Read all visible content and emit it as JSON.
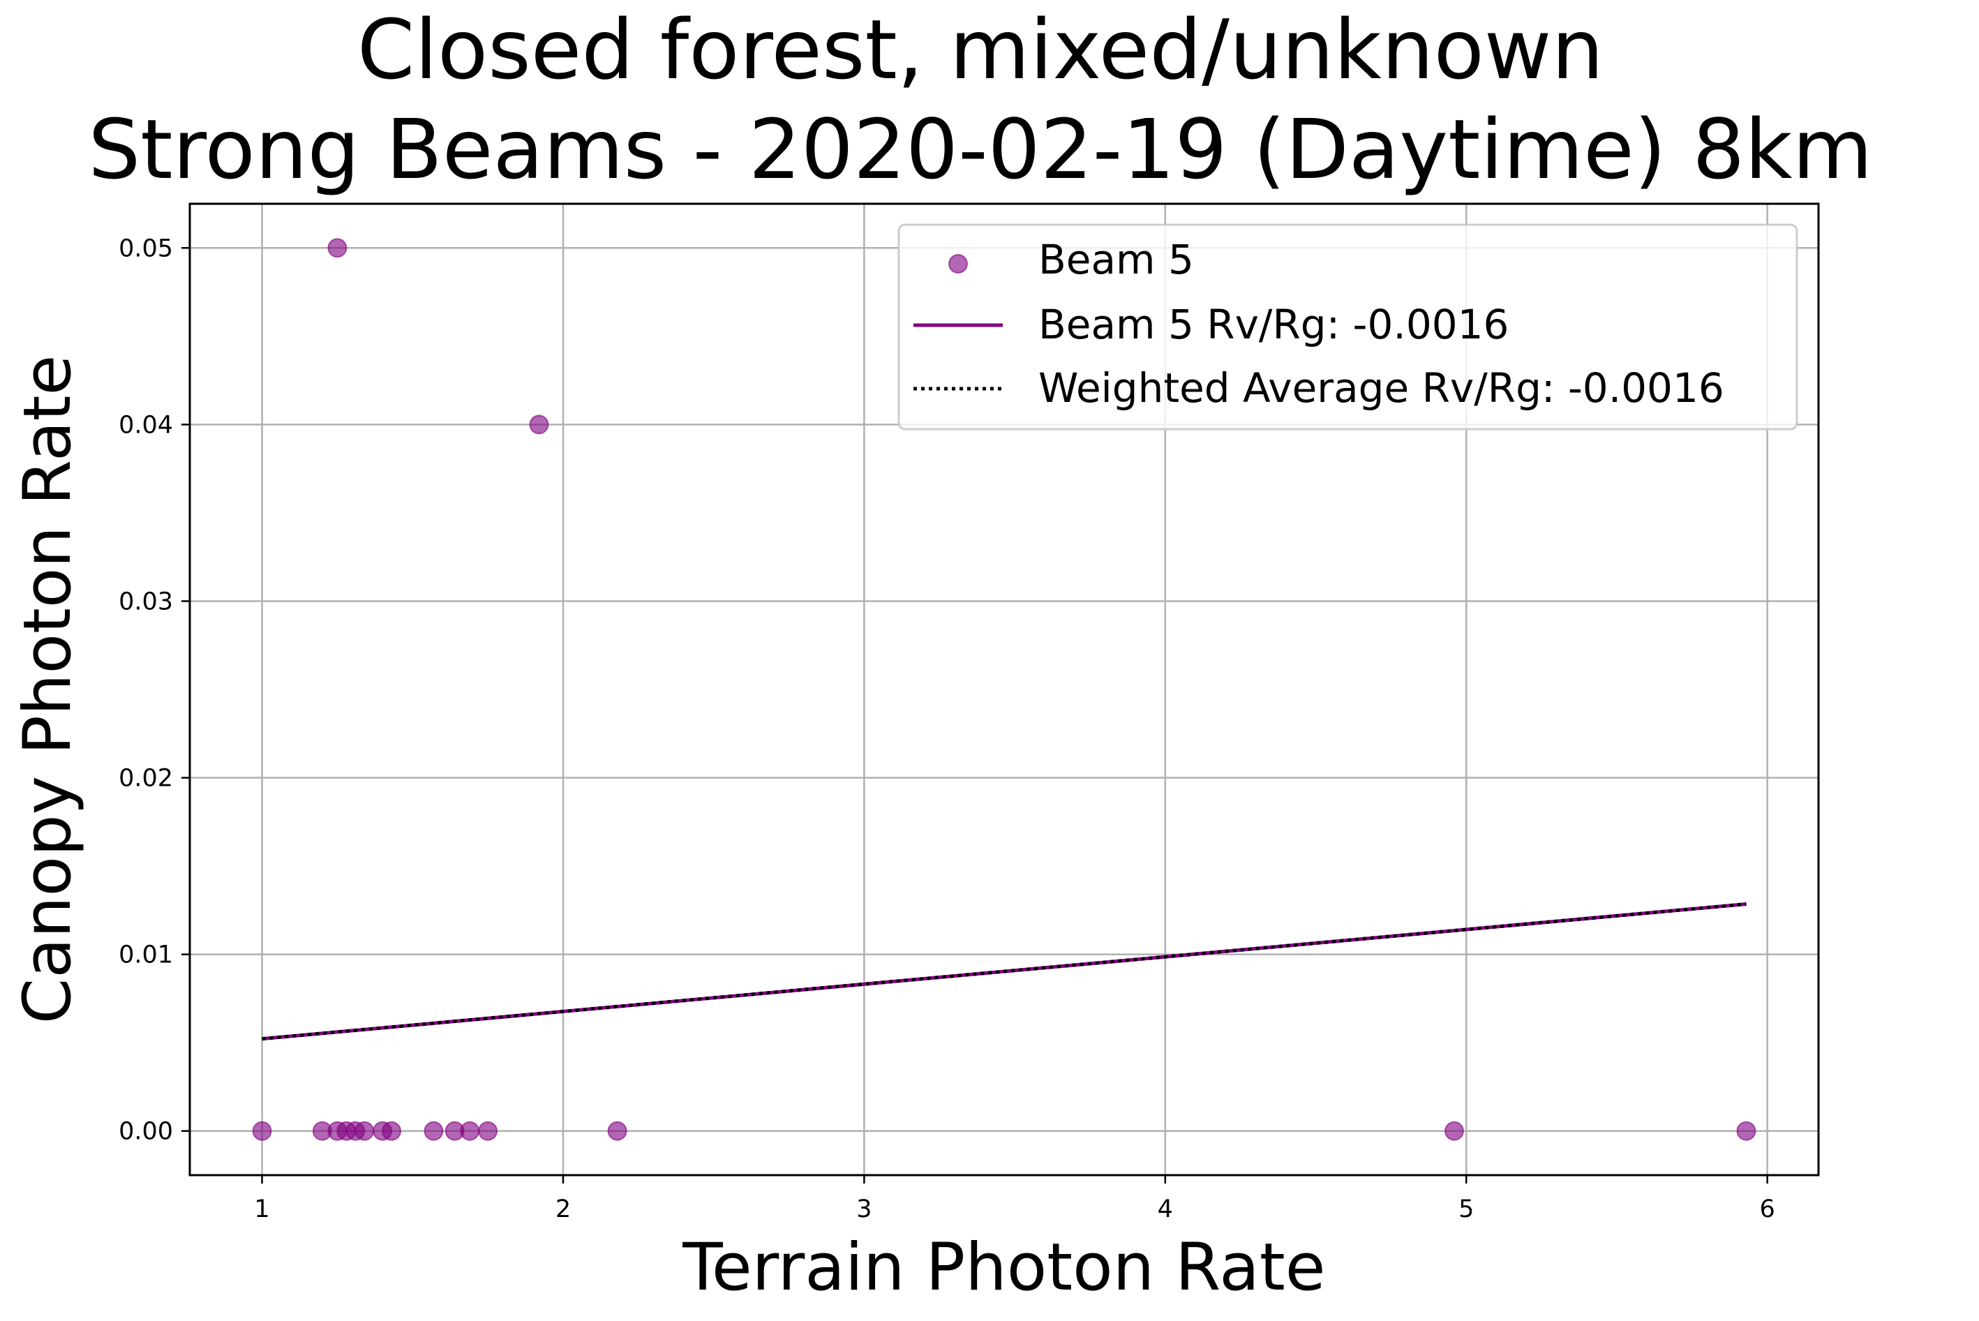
{
  "chart_data": {
    "type": "scatter",
    "title": "Closed forest, mixed/unknown\nStrong Beams - 2020-02-19 (Daytime) 8km",
    "title_lines": [
      "Closed forest, mixed/unknown",
      "Strong Beams - 2020-02-19 (Daytime) 8km"
    ],
    "xlabel": "Terrain Photon Rate",
    "ylabel": "Canopy Photon Rate",
    "xlim": [
      0.76,
      6.17
    ],
    "ylim": [
      -0.0025,
      0.0525
    ],
    "xticks": [
      1,
      2,
      3,
      4,
      5,
      6
    ],
    "xtick_labels": [
      "1",
      "2",
      "3",
      "4",
      "5",
      "6"
    ],
    "yticks": [
      0.0,
      0.01,
      0.02,
      0.03,
      0.04,
      0.05
    ],
    "ytick_labels": [
      "0.00",
      "0.01",
      "0.02",
      "0.03",
      "0.04",
      "0.05"
    ],
    "grid": true,
    "legend_position": "top-right",
    "series": [
      {
        "name": "Beam 5",
        "kind": "scatter",
        "color": "#800080",
        "points": [
          {
            "x": 1.0,
            "y": 0.0
          },
          {
            "x": 1.2,
            "y": 0.0
          },
          {
            "x": 1.25,
            "y": 0.0
          },
          {
            "x": 1.28,
            "y": 0.0
          },
          {
            "x": 1.31,
            "y": 0.0
          },
          {
            "x": 1.34,
            "y": 0.0
          },
          {
            "x": 1.4,
            "y": 0.0
          },
          {
            "x": 1.43,
            "y": 0.0
          },
          {
            "x": 1.57,
            "y": 0.0
          },
          {
            "x": 1.64,
            "y": 0.0
          },
          {
            "x": 1.69,
            "y": 0.0
          },
          {
            "x": 1.75,
            "y": 0.0
          },
          {
            "x": 2.18,
            "y": 0.0
          },
          {
            "x": 4.96,
            "y": 0.0
          },
          {
            "x": 5.93,
            "y": 0.0
          },
          {
            "x": 1.25,
            "y": 0.05
          },
          {
            "x": 1.92,
            "y": 0.04
          }
        ]
      },
      {
        "name": "Beam 5 Rv/Rg: -0.0016",
        "kind": "line",
        "color": "#800080",
        "style": "solid",
        "x": [
          1.0,
          5.93
        ],
        "y": [
          0.00522,
          0.01285
        ]
      },
      {
        "name": "Weighted Average Rv/Rg: -0.0016",
        "kind": "line",
        "color": "#000000",
        "style": "dotted",
        "x": [
          1.0,
          5.93
        ],
        "y": [
          0.00522,
          0.01285
        ]
      }
    ]
  }
}
